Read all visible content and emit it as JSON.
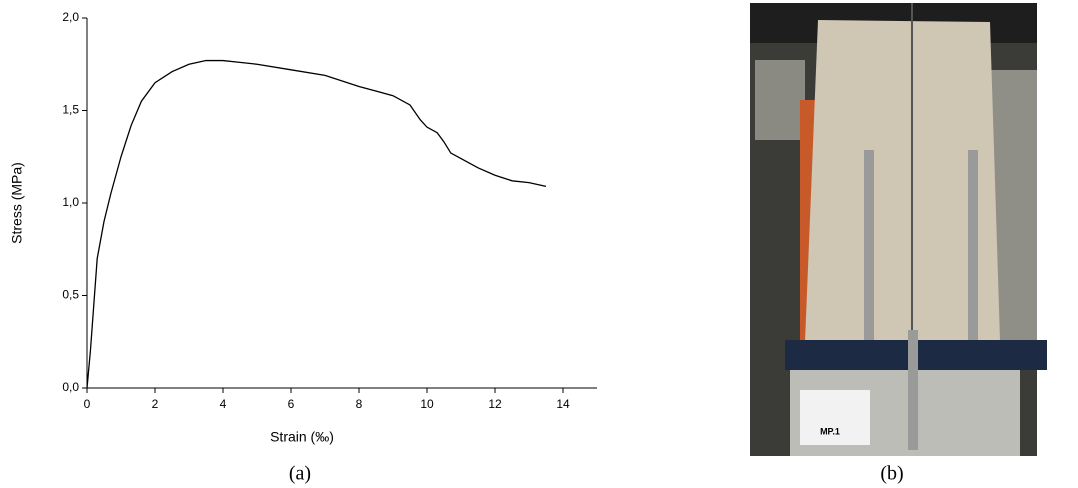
{
  "chart_data": {
    "type": "line",
    "x_label": "Strain (‰)",
    "y_label": "Stress (MPa)",
    "x": [
      0,
      0.1,
      0.2,
      0.3,
      0.5,
      0.7,
      1.0,
      1.3,
      1.6,
      2.0,
      2.5,
      3.0,
      3.5,
      4.0,
      4.5,
      5,
      6,
      7,
      8,
      9,
      9.5,
      9.8,
      10,
      10.3,
      10.5,
      10.7,
      11,
      11.5,
      12,
      12.5,
      13,
      13.5
    ],
    "values": [
      0,
      0.2,
      0.45,
      0.7,
      0.9,
      1.05,
      1.25,
      1.42,
      1.55,
      1.65,
      1.71,
      1.75,
      1.77,
      1.77,
      1.76,
      1.75,
      1.72,
      1.69,
      1.63,
      1.58,
      1.53,
      1.45,
      1.41,
      1.38,
      1.33,
      1.27,
      1.24,
      1.19,
      1.15,
      1.12,
      1.11,
      1.09
    ],
    "color": "#000000",
    "xlim": [
      0,
      15
    ],
    "xticks": [
      0,
      2,
      4,
      6,
      8,
      10,
      12,
      14
    ],
    "ylim": [
      0,
      2
    ],
    "yticks": [
      {
        "value": 0,
        "label": "0,0"
      },
      {
        "value": 0.5,
        "label": "0,5"
      },
      {
        "value": 1,
        "label": "1,0"
      },
      {
        "value": 1.5,
        "label": "1,5"
      },
      {
        "value": 2,
        "label": "2,0"
      }
    ],
    "grid": false
  },
  "captions": [
    "(a)",
    "(b)"
  ],
  "photo": {
    "label": "MP.1"
  }
}
